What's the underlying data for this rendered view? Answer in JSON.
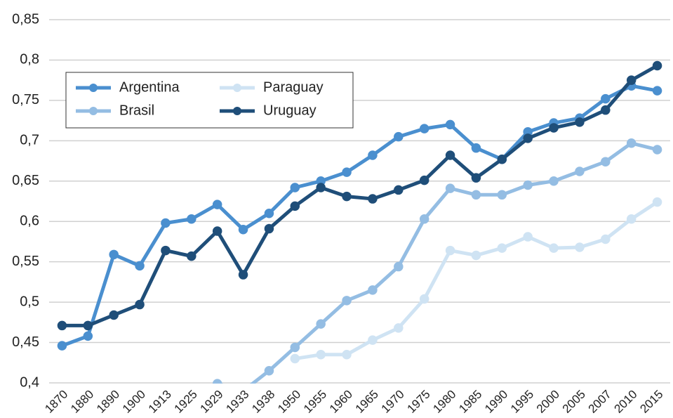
{
  "chart_data": {
    "type": "line",
    "categories": [
      "1870",
      "1880",
      "1890",
      "1900",
      "1913",
      "1925",
      "1929",
      "1933",
      "1938",
      "1950",
      "1955",
      "1960",
      "1965",
      "1970",
      "1975",
      "1980",
      "1985",
      "1990",
      "1995",
      "2000",
      "2005",
      "2007",
      "2010",
      "2015"
    ],
    "series": [
      {
        "name": "Argentina",
        "color": "#4a8fcf",
        "values": [
          0.446,
          0.458,
          0.559,
          0.545,
          0.598,
          0.603,
          0.621,
          0.59,
          0.61,
          0.642,
          0.65,
          0.661,
          0.682,
          0.705,
          0.715,
          0.72,
          0.691,
          0.677,
          0.711,
          0.722,
          0.728,
          0.752,
          0.768,
          0.762
        ]
      },
      {
        "name": "Brasil",
        "color": "#94bde3",
        "values": [
          null,
          null,
          null,
          null,
          null,
          null,
          0.399,
          0.39,
          0.415,
          0.444,
          0.473,
          0.502,
          0.515,
          0.544,
          0.603,
          0.641,
          0.633,
          0.633,
          0.645,
          0.65,
          0.662,
          0.674,
          0.697,
          0.689
        ]
      },
      {
        "name": "Paraguay",
        "color": "#cfe3f3",
        "values": [
          null,
          null,
          null,
          null,
          null,
          null,
          null,
          null,
          null,
          0.43,
          0.435,
          0.435,
          0.453,
          0.468,
          0.504,
          0.564,
          0.558,
          0.567,
          0.581,
          0.567,
          0.568,
          0.578,
          0.603,
          0.624
        ]
      },
      {
        "name": "Uruguay",
        "color": "#1f4e79",
        "values": [
          0.471,
          0.471,
          0.484,
          0.497,
          0.564,
          0.557,
          0.588,
          0.534,
          0.591,
          0.619,
          0.642,
          0.631,
          0.628,
          0.639,
          0.651,
          0.682,
          0.654,
          0.677,
          0.703,
          0.716,
          0.723,
          0.738,
          0.775,
          0.793
        ]
      }
    ],
    "ylim": [
      0.4,
      0.85
    ],
    "yticks": [
      {
        "value": 0.4,
        "label": "0,4"
      },
      {
        "value": 0.45,
        "label": "0,45"
      },
      {
        "value": 0.5,
        "label": "0,5"
      },
      {
        "value": 0.55,
        "label": "0,55"
      },
      {
        "value": 0.6,
        "label": "0,6"
      },
      {
        "value": 0.65,
        "label": "0,65"
      },
      {
        "value": 0.7,
        "label": "0,7"
      },
      {
        "value": 0.75,
        "label": "0,75"
      },
      {
        "value": 0.8,
        "label": "0,8"
      },
      {
        "value": 0.85,
        "label": "0,85"
      }
    ],
    "grid": true,
    "legend": "upper left"
  }
}
